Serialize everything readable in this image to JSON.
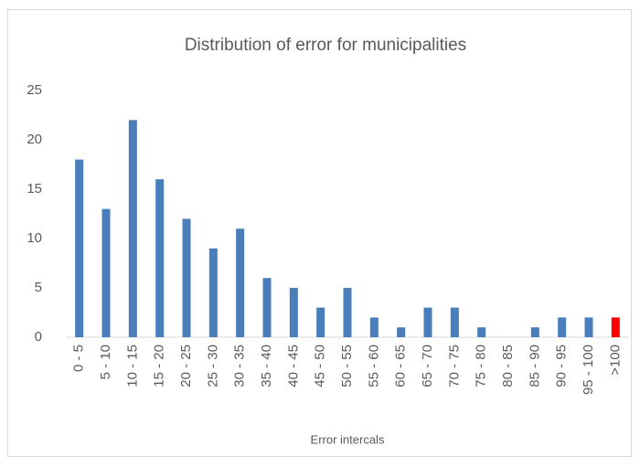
{
  "chart_data": {
    "type": "bar",
    "title": "Distribution of error for municipalities",
    "x_label": "Error intercals",
    "categories": [
      "0 - 5",
      "5 - 10",
      "10 - 15",
      "15 - 20",
      "20 - 25",
      "25 - 30",
      "30 - 35",
      "35 - 40",
      "40 - 45",
      "45 - 50",
      "50 - 55",
      "55 - 60",
      "60 - 65",
      "65 - 70",
      "70 - 75",
      "75 - 80",
      "80 - 85",
      "85 - 90",
      "90 - 95",
      "95 - 100",
      ">100"
    ],
    "values": [
      18,
      13,
      22,
      16,
      12,
      9,
      11,
      6,
      5,
      3,
      5,
      2,
      1,
      3,
      3,
      1,
      0,
      1,
      2,
      2,
      2
    ],
    "colors": [
      "#4a7ebb",
      "#4a7ebb",
      "#4a7ebb",
      "#4a7ebb",
      "#4a7ebb",
      "#4a7ebb",
      "#4a7ebb",
      "#4a7ebb",
      "#4a7ebb",
      "#4a7ebb",
      "#4a7ebb",
      "#4a7ebb",
      "#4a7ebb",
      "#4a7ebb",
      "#4a7ebb",
      "#4a7ebb",
      "#4a7ebb",
      "#4a7ebb",
      "#4a7ebb",
      "#4a7ebb",
      "#ff0000"
    ],
    "ylim": [
      0,
      25
    ],
    "yticks": [
      0,
      5,
      10,
      15,
      20,
      25
    ],
    "grid": false
  }
}
